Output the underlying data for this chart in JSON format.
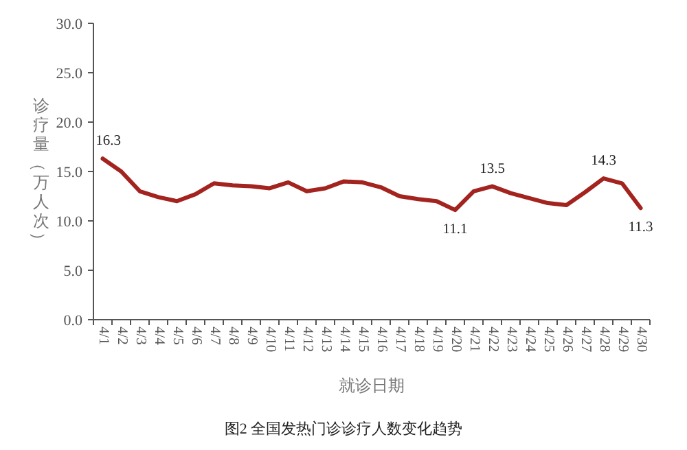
{
  "chart_data": {
    "type": "line",
    "xlabel": "就诊日期",
    "ylabel": "诊疗量（万人次）",
    "annotations": [
      "图2 全国发热门诊诊疗人数变化趋势"
    ],
    "categories": [
      "4/1",
      "4/2",
      "4/3",
      "4/4",
      "4/5",
      "4/6",
      "4/7",
      "4/8",
      "4/9",
      "4/10",
      "4/11",
      "4/12",
      "4/13",
      "4/14",
      "4/15",
      "4/16",
      "4/17",
      "4/18",
      "4/19",
      "4/20",
      "4/21",
      "4/22",
      "4/23",
      "4/24",
      "4/25",
      "4/26",
      "4/27",
      "4/28",
      "4/29",
      "4/30"
    ],
    "series": [
      {
        "color": "#a3231f",
        "values": [
          16.3,
          15.0,
          13.0,
          12.4,
          12.0,
          12.7,
          13.8,
          13.6,
          13.5,
          13.3,
          13.9,
          13.0,
          13.3,
          14.0,
          13.9,
          13.4,
          12.5,
          12.2,
          12.0,
          11.1,
          13.0,
          13.5,
          12.8,
          12.3,
          11.8,
          11.6,
          12.9,
          14.3,
          13.8,
          11.3
        ],
        "value_labels": [
          "16.3",
          null,
          null,
          null,
          null,
          null,
          null,
          null,
          null,
          null,
          null,
          null,
          null,
          null,
          null,
          null,
          null,
          null,
          null,
          "11.1",
          null,
          "13.5",
          null,
          null,
          null,
          null,
          null,
          "14.3",
          null,
          "11.3"
        ]
      }
    ],
    "ylim": [
      0,
      30
    ],
    "yticks": [
      {
        "value": 0,
        "label": "0.0"
      },
      {
        "value": 5,
        "label": "5.0"
      },
      {
        "value": 10,
        "label": "10.0"
      },
      {
        "value": 15,
        "label": "15.0"
      },
      {
        "value": 20,
        "label": "20.0"
      },
      {
        "value": 25,
        "label": "25.0"
      },
      {
        "value": 30,
        "label": "30.0"
      }
    ],
    "grid": false,
    "marker": "none",
    "line_style": "solid"
  }
}
